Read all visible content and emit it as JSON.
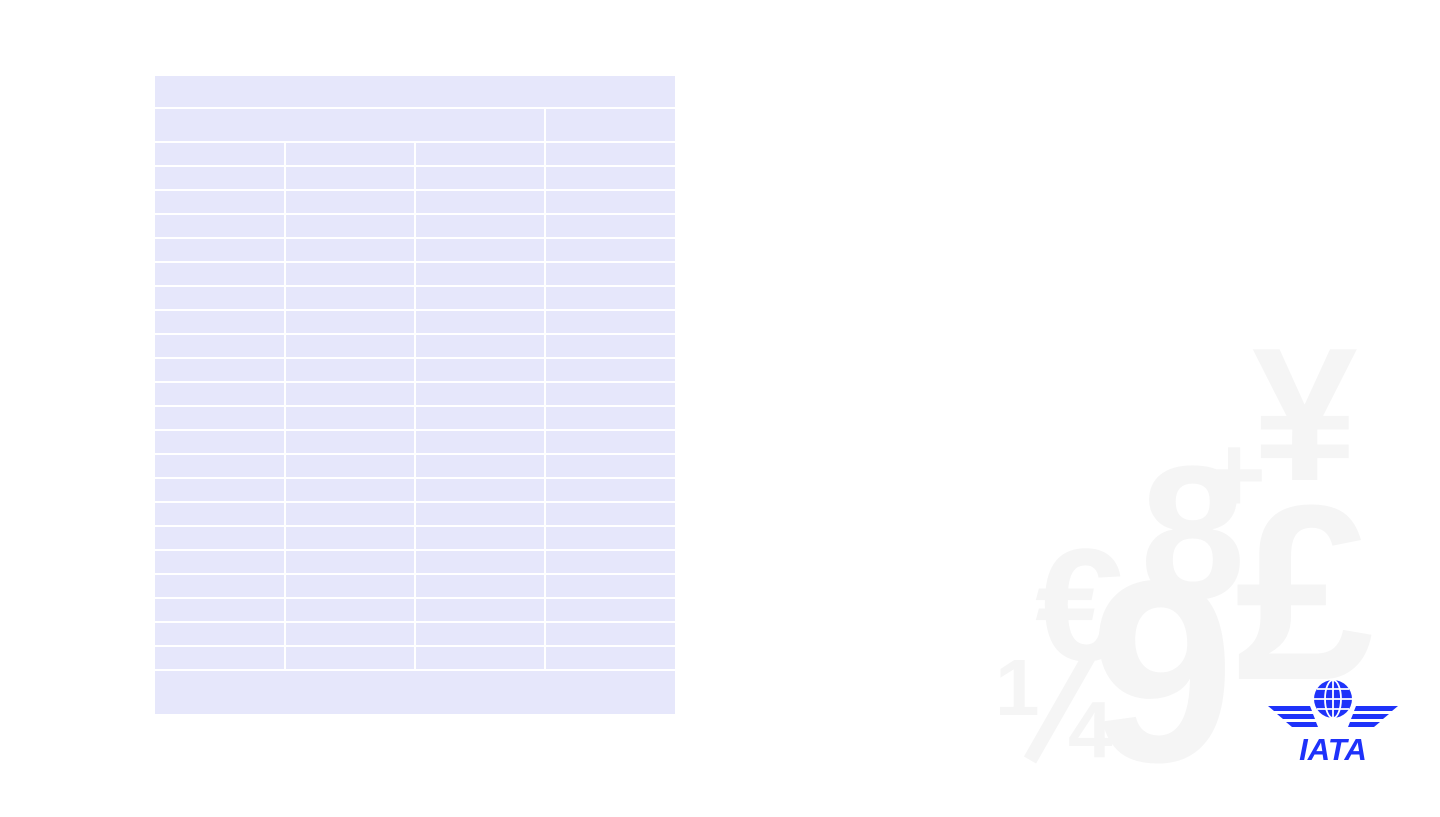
{
  "table": {
    "title": "",
    "header": [
      "",
      ""
    ],
    "rows": [
      [
        "",
        "",
        "",
        ""
      ],
      [
        "",
        "",
        "",
        ""
      ],
      [
        "",
        "",
        "",
        ""
      ],
      [
        "",
        "",
        "",
        ""
      ],
      [
        "",
        "",
        "",
        ""
      ],
      [
        "",
        "",
        "",
        ""
      ],
      [
        "",
        "",
        "",
        ""
      ],
      [
        "",
        "",
        "",
        ""
      ],
      [
        "",
        "",
        "",
        ""
      ],
      [
        "",
        "",
        "",
        ""
      ],
      [
        "",
        "",
        "",
        ""
      ],
      [
        "",
        "",
        "",
        ""
      ],
      [
        "",
        "",
        "",
        ""
      ],
      [
        "",
        "",
        "",
        ""
      ],
      [
        "",
        "",
        "",
        ""
      ],
      [
        "",
        "",
        "",
        ""
      ],
      [
        "",
        "",
        "",
        ""
      ],
      [
        "",
        "",
        "",
        ""
      ],
      [
        "",
        "",
        "",
        ""
      ],
      [
        "",
        "",
        "",
        ""
      ],
      [
        "",
        "",
        "",
        ""
      ],
      [
        "",
        "",
        "",
        ""
      ]
    ],
    "footer": ""
  },
  "background_glyphs": {
    "yen": "¥",
    "plus": "+",
    "eight": "8",
    "pound": "£",
    "euro": "€",
    "nine": "9",
    "one": "1",
    "four": "4"
  },
  "logo": {
    "text": "IATA",
    "color": "#1e32fa"
  },
  "colors": {
    "table_fill": "#e6e7fb",
    "background": "#ffffff",
    "watermark": "#f5f5f5",
    "brand": "#1e32fa"
  }
}
